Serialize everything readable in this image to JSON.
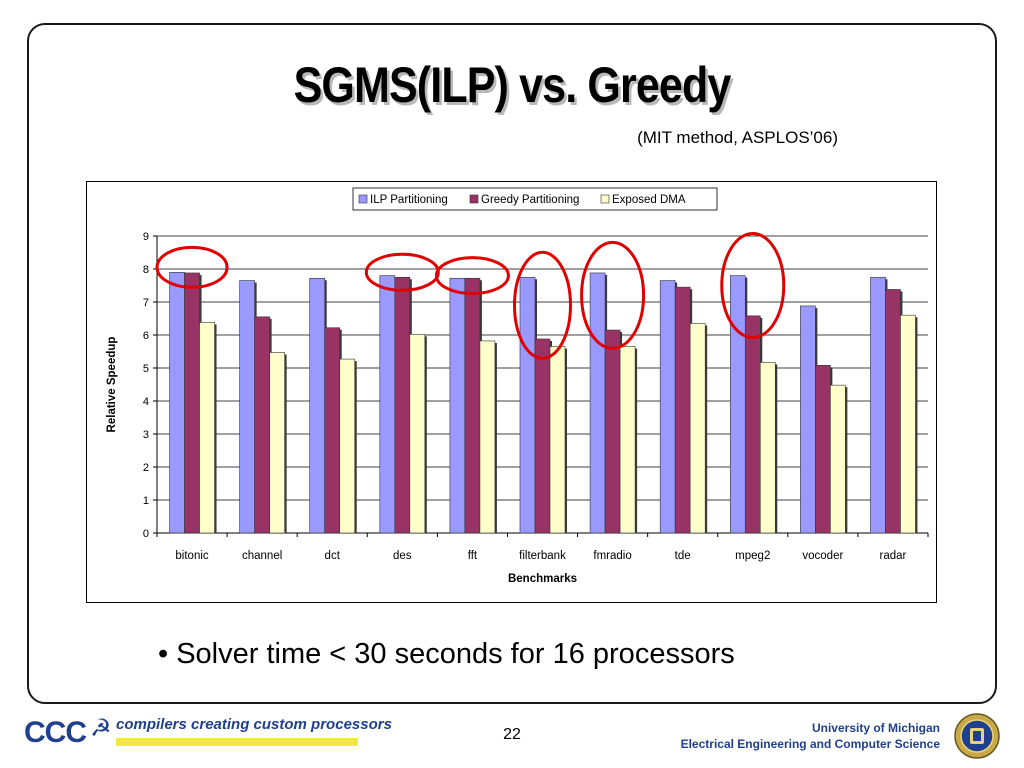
{
  "slide": {
    "title": "SGMS(ILP) vs. Greedy",
    "subtitle": "(MIT method, ASPLOS’06)",
    "bullet": "• Solver time < 30 seconds for 16 processors",
    "page_number": "22"
  },
  "footer": {
    "logo_text": "CCC",
    "logo_tagline": "compilers creating custom processors",
    "university_line1": "University of Michigan",
    "university_line2": "Electrical Engineering and Computer Science"
  },
  "colors": {
    "ilp": "#9999ff",
    "greedy": "#993366",
    "exposed": "#ffffcc",
    "highlight_circle": "#e00000"
  },
  "chart_data": {
    "type": "bar",
    "title": "",
    "xlabel": "Benchmarks",
    "ylabel": "Relative Speedup",
    "ylim": [
      0,
      9
    ],
    "yticks": [
      "0",
      "1",
      "2",
      "3",
      "4",
      "5",
      "6",
      "7",
      "8",
      "9"
    ],
    "grid": true,
    "legend_position": "top-right",
    "categories": [
      "bitonic",
      "channel",
      "dct",
      "des",
      "fft",
      "filterbank",
      "fmradio",
      "tde",
      "mpeg2",
      "vocoder",
      "radar"
    ],
    "series": [
      {
        "name": "ILP Partitioning",
        "values": [
          7.9,
          7.65,
          7.72,
          7.8,
          7.72,
          7.75,
          7.88,
          7.65,
          7.8,
          6.88,
          7.75
        ]
      },
      {
        "name": "Greedy Partitioning",
        "values": [
          7.88,
          6.55,
          6.22,
          7.75,
          7.72,
          5.88,
          6.15,
          7.45,
          6.58,
          5.08,
          7.38
        ]
      },
      {
        "name": "Exposed DMA",
        "values": [
          6.38,
          5.47,
          5.27,
          6.02,
          5.82,
          5.65,
          5.65,
          6.35,
          5.17,
          4.48,
          6.6
        ]
      }
    ],
    "highlighted_categories": [
      "bitonic",
      "des",
      "fft",
      "filterbank",
      "fmradio",
      "mpeg2"
    ]
  }
}
